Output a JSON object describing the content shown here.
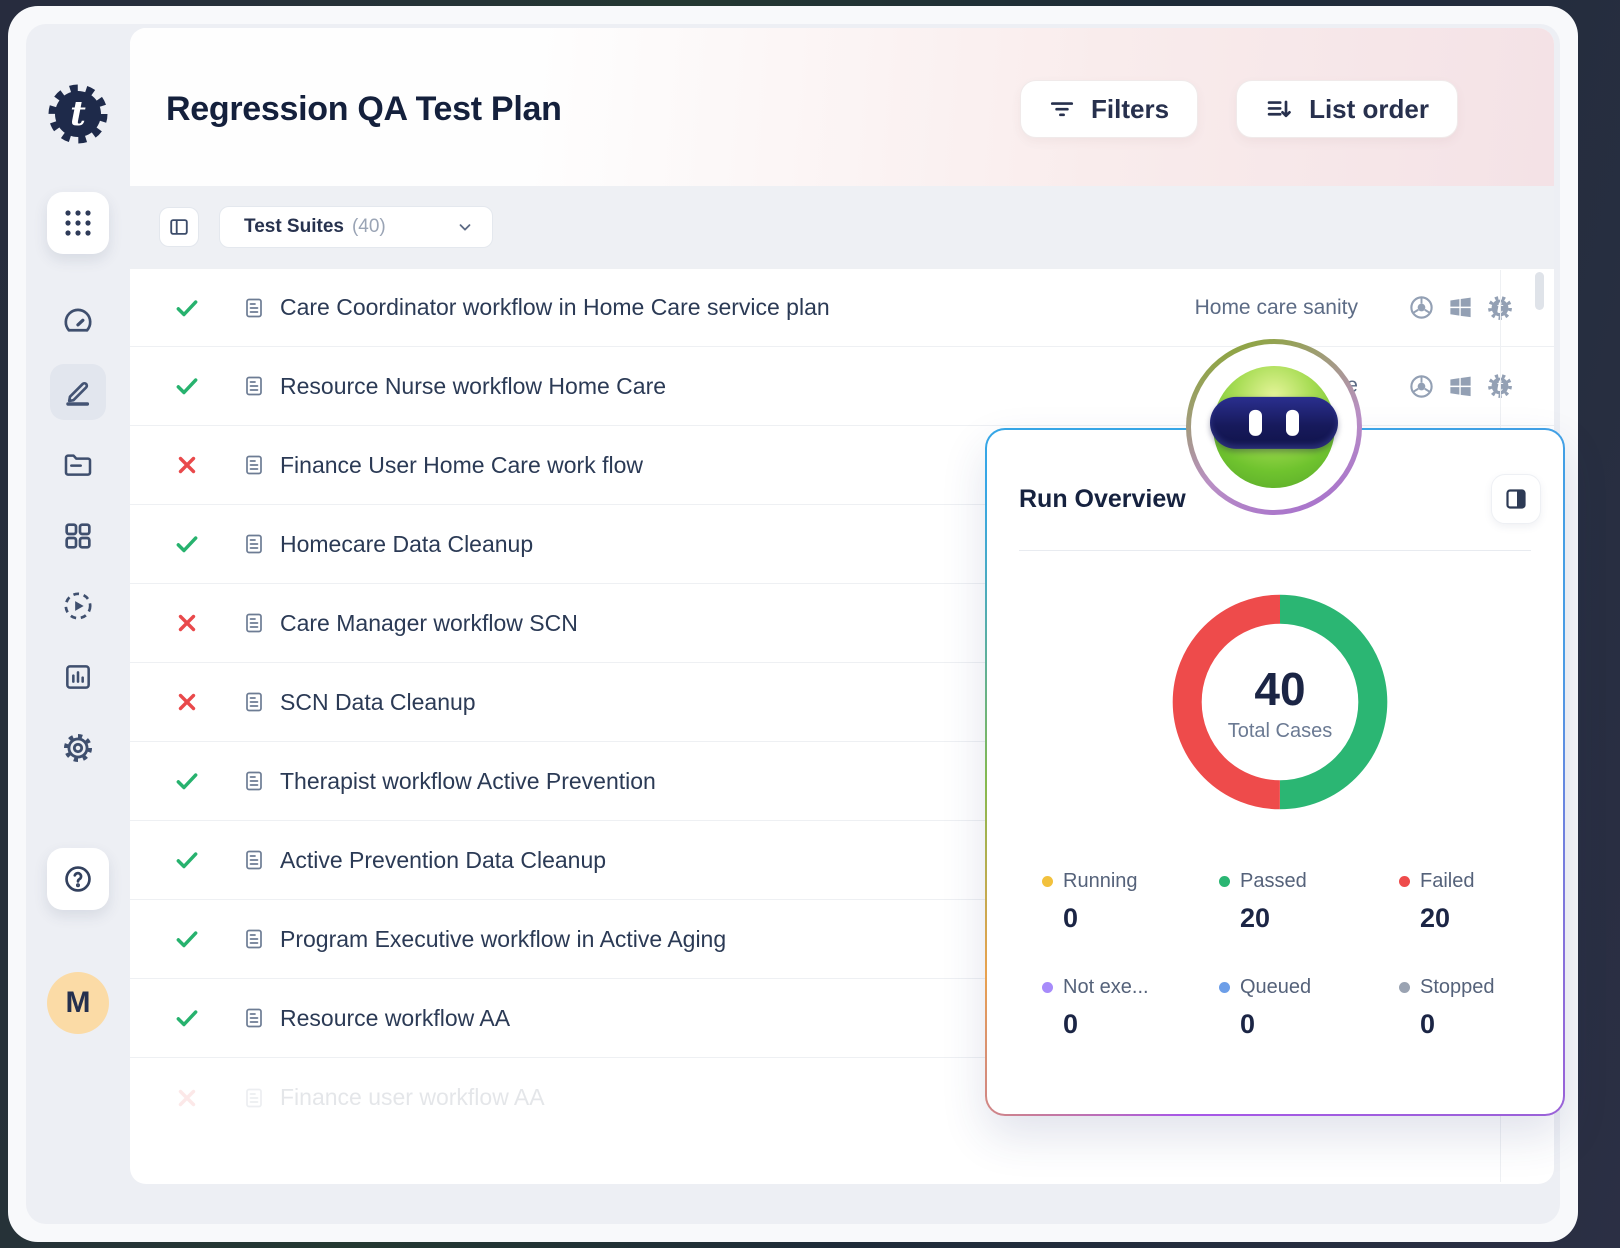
{
  "sidebar": {
    "logo_letter": "t",
    "avatar_initial": "M",
    "items": [
      "apps-grid",
      "dashboard",
      "editor",
      "folder",
      "elements",
      "runs",
      "reports",
      "settings",
      "help"
    ]
  },
  "header": {
    "title": "Regression QA Test Plan",
    "filters_label": "Filters",
    "list_order_label": "List order"
  },
  "toolbar": {
    "suites_label": "Test Suites",
    "suites_count": "(40)"
  },
  "test_list": {
    "rows": [
      {
        "status": "passed",
        "title": "Care Coordinator workflow in Home Care service plan",
        "tag": "Home care sanity",
        "env_icons": [
          "chrome",
          "windows",
          "agent"
        ],
        "faded": false
      },
      {
        "status": "passed",
        "title": "Resource Nurse workflow Home Care",
        "tag": "Home",
        "env_icons": [
          "chrome",
          "windows",
          "agent"
        ],
        "faded": false
      },
      {
        "status": "failed",
        "title": "Finance User Home Care work flow",
        "tag": "",
        "env_icons": [],
        "faded": false
      },
      {
        "status": "passed",
        "title": "Homecare Data Cleanup",
        "tag": "",
        "env_icons": [],
        "faded": false
      },
      {
        "status": "failed",
        "title": "Care Manager workflow SCN",
        "tag": "",
        "env_icons": [],
        "faded": false
      },
      {
        "status": "failed",
        "title": "SCN Data Cleanup",
        "tag": "",
        "env_icons": [],
        "faded": false
      },
      {
        "status": "passed",
        "title": "Therapist workflow Active Prevention",
        "tag": "",
        "env_icons": [],
        "faded": false
      },
      {
        "status": "passed",
        "title": "Active Prevention Data Cleanup",
        "tag": "",
        "env_icons": [],
        "faded": false
      },
      {
        "status": "passed",
        "title": "Program Executive workflow in Active Aging",
        "tag": "",
        "env_icons": [],
        "faded": false
      },
      {
        "status": "passed",
        "title": "Resource workflow AA",
        "tag": "",
        "env_icons": [],
        "faded": false
      },
      {
        "status": "failed",
        "title": "Finance user workflow AA",
        "tag": "",
        "env_icons": [],
        "faded": true
      }
    ]
  },
  "run_overview": {
    "title": "Run Overview"
  },
  "chart_data": {
    "type": "pie",
    "title": "Run Overview",
    "center_value": "40",
    "center_label": "Total Cases",
    "series": [
      {
        "name": "Running",
        "display_name": "Running",
        "value": 0,
        "color": "#f2c13d"
      },
      {
        "name": "Passed",
        "display_name": "Passed",
        "value": 20,
        "color": "#2bb673"
      },
      {
        "name": "Failed",
        "display_name": "Failed",
        "value": 20,
        "color": "#ee4b4b"
      },
      {
        "name": "Not executed",
        "display_name": "Not exe...",
        "value": 0,
        "color": "#a78bfa"
      },
      {
        "name": "Queued",
        "display_name": "Queued",
        "value": 0,
        "color": "#6c9ee8"
      },
      {
        "name": "Stopped",
        "display_name": "Stopped",
        "value": 0,
        "color": "#9aa3b2"
      }
    ],
    "legend_position": "bottom",
    "colors": {
      "passed": "#2bb673",
      "failed": "#ee4b4b"
    }
  }
}
